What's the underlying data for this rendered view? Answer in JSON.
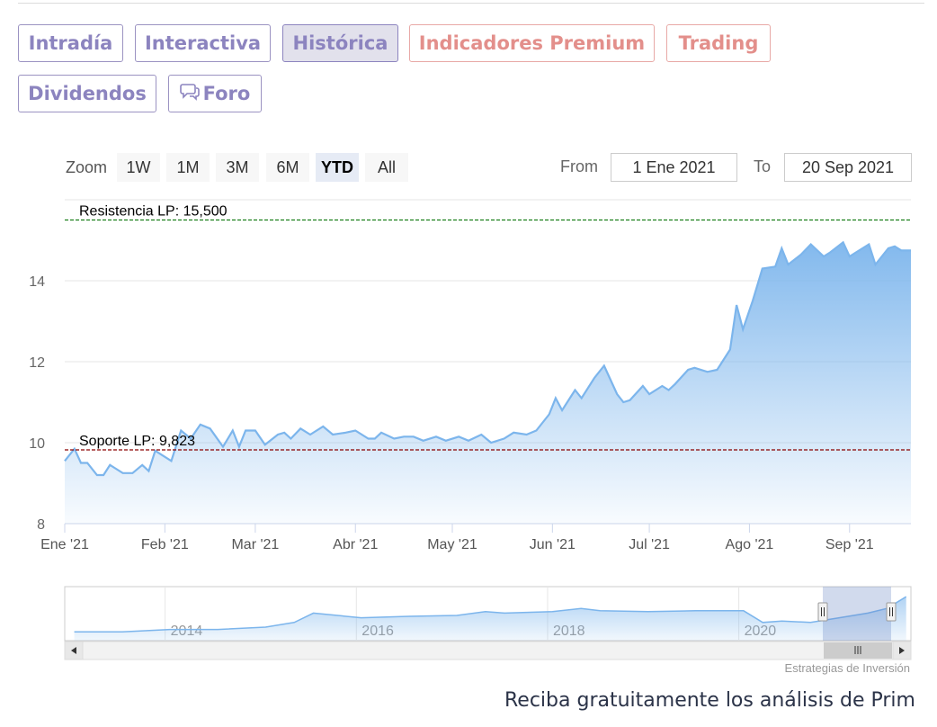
{
  "tabs": [
    {
      "label": "Intradía",
      "state": "normal"
    },
    {
      "label": "Interactiva",
      "state": "normal"
    },
    {
      "label": "Histórica",
      "state": "active"
    },
    {
      "label": "Indicadores Premium",
      "state": "premium"
    },
    {
      "label": "Trading",
      "state": "premium"
    },
    {
      "label": "Dividendos",
      "state": "normal"
    },
    {
      "label": "Foro",
      "state": "normal",
      "icon": "chat-bubbles-icon"
    }
  ],
  "range_selector": {
    "zoom_label": "Zoom",
    "buttons": [
      "1W",
      "1M",
      "3M",
      "6M",
      "YTD",
      "All"
    ],
    "selected": "YTD",
    "from_label": "From",
    "from_value": "1 Ene 2021",
    "to_label": "To",
    "to_value": "20 Sep 2021"
  },
  "colors": {
    "line": "#7cb5ec",
    "support": "#8b0000",
    "resistance": "#1a7f1a",
    "tab_text": "#8c84bf",
    "premium_text": "#e38f8b"
  },
  "chart_data": {
    "type": "area",
    "title": "",
    "xlabel": "",
    "ylabel": "",
    "ylim": [
      8,
      16
    ],
    "y_ticks": [
      8,
      10,
      12,
      14
    ],
    "x_tick_labels": [
      "Ene '21",
      "Feb '21",
      "Mar '21",
      "Abr '21",
      "May '21",
      "Jun '21",
      "Jul '21",
      "Ago '21",
      "Sep '21"
    ],
    "series": [
      {
        "x": [
          "2021-01-01",
          "2021-01-04",
          "2021-01-06",
          "2021-01-08",
          "2021-01-11",
          "2021-01-13",
          "2021-01-15",
          "2021-01-19",
          "2021-01-22",
          "2021-01-25",
          "2021-01-27",
          "2021-01-29",
          "2021-02-03",
          "2021-02-06",
          "2021-02-09",
          "2021-02-12",
          "2021-02-15",
          "2021-02-19",
          "2021-02-22",
          "2021-02-24",
          "2021-02-26",
          "2021-03-01",
          "2021-03-04",
          "2021-03-08",
          "2021-03-10",
          "2021-03-12",
          "2021-03-15",
          "2021-03-18",
          "2021-03-22",
          "2021-03-25",
          "2021-03-29",
          "2021-04-01",
          "2021-04-05",
          "2021-04-07",
          "2021-04-09",
          "2021-04-13",
          "2021-04-16",
          "2021-04-19",
          "2021-04-22",
          "2021-04-26",
          "2021-04-29",
          "2021-05-03",
          "2021-05-06",
          "2021-05-10",
          "2021-05-13",
          "2021-05-17",
          "2021-05-20",
          "2021-05-24",
          "2021-05-27",
          "2021-05-31",
          "2021-06-02",
          "2021-06-04",
          "2021-06-08",
          "2021-06-10",
          "2021-06-14",
          "2021-06-17",
          "2021-06-21",
          "2021-06-23",
          "2021-06-25",
          "2021-06-29",
          "2021-07-01",
          "2021-07-05",
          "2021-07-07",
          "2021-07-09",
          "2021-07-13",
          "2021-07-15",
          "2021-07-19",
          "2021-07-22",
          "2021-07-26",
          "2021-07-28",
          "2021-07-30",
          "2021-08-02",
          "2021-08-05",
          "2021-08-09",
          "2021-08-11",
          "2021-08-13",
          "2021-08-17",
          "2021-08-20",
          "2021-08-24",
          "2021-08-26",
          "2021-08-30",
          "2021-09-01",
          "2021-09-03",
          "2021-09-07",
          "2021-09-09",
          "2021-09-13",
          "2021-09-15",
          "2021-09-17",
          "2021-09-20"
        ],
        "y": [
          9.55,
          9.85,
          9.5,
          9.5,
          9.2,
          9.2,
          9.45,
          9.25,
          9.25,
          9.45,
          9.3,
          9.8,
          9.55,
          10.3,
          10.1,
          10.45,
          10.35,
          9.9,
          10.3,
          9.9,
          10.3,
          10.3,
          9.95,
          10.2,
          10.25,
          10.1,
          10.35,
          10.2,
          10.4,
          10.2,
          10.25,
          10.3,
          10.1,
          10.1,
          10.25,
          10.1,
          10.15,
          10.15,
          10.05,
          10.15,
          10.05,
          10.15,
          10.05,
          10.2,
          10.0,
          10.1,
          10.25,
          10.2,
          10.3,
          10.7,
          11.1,
          10.8,
          11.3,
          11.1,
          11.6,
          11.9,
          11.2,
          11.0,
          11.05,
          11.4,
          11.2,
          11.4,
          11.3,
          11.45,
          11.8,
          11.85,
          11.75,
          11.8,
          12.3,
          13.4,
          12.8,
          13.5,
          14.3,
          14.35,
          14.8,
          14.4,
          14.65,
          14.9,
          14.6,
          14.7,
          14.95,
          14.6,
          14.7,
          14.9,
          14.4,
          14.8,
          14.85,
          14.75,
          14.75
        ]
      }
    ],
    "plot_lines": [
      {
        "label": "Resistencia LP: 15,500",
        "value": 15.5
      },
      {
        "label": "Soporte LP: 9,823",
        "value": 9.823
      }
    ],
    "navigator": {
      "x_tick_labels": [
        "2014",
        "2016",
        "2018",
        "2020"
      ],
      "selected_range": [
        "2021-01-01",
        "2021-09-20"
      ],
      "series_x": [
        2013.0,
        2013.5,
        2014.0,
        2014.5,
        2015.0,
        2015.3,
        2015.5,
        2016.0,
        2016.5,
        2017.0,
        2017.3,
        2017.5,
        2018.0,
        2018.3,
        2018.5,
        2019.0,
        2019.5,
        2020.0,
        2020.2,
        2020.4,
        2020.7,
        2021.0,
        2021.3,
        2021.5,
        2021.7
      ],
      "series_y": [
        3.5,
        3.5,
        4.0,
        4.0,
        4.5,
        5.5,
        7.5,
        6.5,
        6.8,
        7.0,
        7.8,
        7.5,
        7.8,
        8.5,
        8.0,
        7.8,
        8.0,
        8.0,
        5.5,
        5.8,
        5.5,
        6.5,
        7.5,
        8.5,
        11.0
      ]
    }
  },
  "credit": "Estrategias de Inversión",
  "promo": "Reciba gratuitamente los análisis de Prim"
}
